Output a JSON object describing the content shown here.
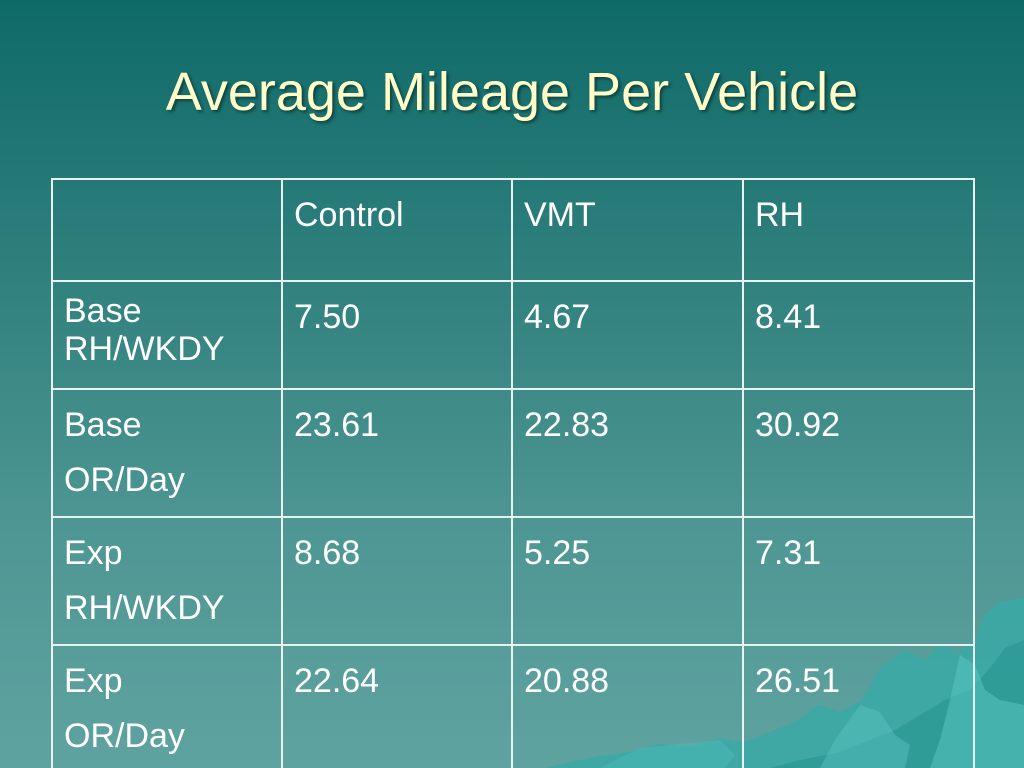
{
  "slide": {
    "title": "Average Mileage Per Vehicle"
  },
  "table": {
    "headers": [
      "",
      "Control",
      "VMT",
      "RH"
    ],
    "rows": [
      {
        "label": [
          "Base",
          "RH/WKDY"
        ],
        "values": [
          "7.50",
          "4.67",
          "8.41"
        ]
      },
      {
        "label": [
          "Base",
          "OR/Day"
        ],
        "values": [
          "23.61",
          "22.83",
          "30.92"
        ]
      },
      {
        "label": [
          "Exp",
          "RH/WKDY"
        ],
        "values": [
          "8.68",
          "5.25",
          "7.31"
        ]
      },
      {
        "label": [
          "Exp",
          "OR/Day"
        ],
        "values": [
          "22.64",
          "20.88",
          "26.51"
        ]
      }
    ]
  },
  "colors": {
    "title_text": "#ffffc9",
    "background_top": "#0e6a68",
    "background_bottom": "#5fa3a0",
    "table_border": "#e8f2f2",
    "iceberg": "#3fb3b0"
  }
}
